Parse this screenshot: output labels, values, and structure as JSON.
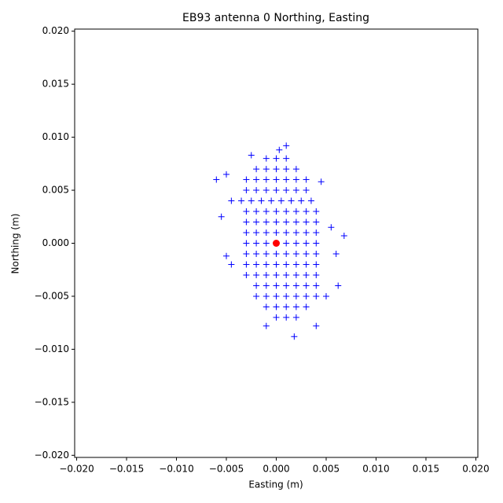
{
  "chart_data": {
    "type": "scatter",
    "title": "EB93 antenna 0 Northing, Easting",
    "x_label": "Easting (m)",
    "y_label": "Northing (m)",
    "xlim": [
      -0.0202,
      0.0202
    ],
    "ylim": [
      -0.0202,
      0.0202
    ],
    "xticks": [
      {
        "value": -0.02,
        "label": "−0.020"
      },
      {
        "value": -0.015,
        "label": "−0.015"
      },
      {
        "value": -0.01,
        "label": "−0.010"
      },
      {
        "value": -0.005,
        "label": "−0.005"
      },
      {
        "value": 0,
        "label": "0.000"
      },
      {
        "value": 0.005,
        "label": "0.005"
      },
      {
        "value": 0.01,
        "label": "0.010"
      },
      {
        "value": 0.015,
        "label": "0.015"
      },
      {
        "value": 0.02,
        "label": "0.020"
      }
    ],
    "yticks": [
      {
        "value": -0.02,
        "label": "−0.020"
      },
      {
        "value": -0.015,
        "label": "−0.015"
      },
      {
        "value": -0.01,
        "label": "−0.010"
      },
      {
        "value": -0.005,
        "label": "−0.005"
      },
      {
        "value": 0,
        "label": "0.000"
      },
      {
        "value": 0.005,
        "label": "0.005"
      },
      {
        "value": 0.01,
        "label": "0.010"
      },
      {
        "value": 0.015,
        "label": "0.015"
      },
      {
        "value": 0.02,
        "label": "0.020"
      }
    ],
    "grid": false,
    "series": [
      {
        "color": "#0000ff",
        "marker": "+",
        "x": [
          -0.001,
          0,
          0.001,
          -0.002,
          -0.001,
          0,
          0.001,
          0.002,
          -0.003,
          -0.002,
          -0.001,
          0,
          0.001,
          0.002,
          0.003,
          -0.003,
          -0.002,
          -0.001,
          0,
          0.001,
          0.002,
          0.003,
          -0.0035,
          -0.0025,
          -0.0015,
          -0.0005,
          0.0005,
          0.0015,
          0.0025,
          0.0035,
          -0.003,
          -0.002,
          -0.001,
          0,
          0.001,
          0.002,
          0.003,
          0.004,
          -0.003,
          -0.002,
          -0.001,
          0,
          0.001,
          0.002,
          0.003,
          0.004,
          -0.003,
          -0.002,
          -0.001,
          0,
          0.001,
          0.002,
          0.003,
          0.004,
          -0.003,
          -0.002,
          -0.001,
          0,
          0.001,
          0.002,
          0.003,
          0.004,
          -0.003,
          -0.002,
          -0.001,
          0,
          0.001,
          0.002,
          0.003,
          0.004,
          -0.003,
          -0.002,
          -0.001,
          0,
          0.001,
          0.002,
          0.003,
          0.004,
          -0.003,
          -0.002,
          -0.001,
          0,
          0.001,
          0.002,
          0.003,
          0.004,
          -0.002,
          -0.001,
          0,
          0.001,
          0.002,
          0.003,
          0.004,
          -0.002,
          -0.001,
          0,
          0.001,
          0.002,
          0.003,
          0.004,
          -0.001,
          0,
          0.001,
          0.002,
          0.003,
          0,
          0.001,
          0.002,
          -0.006,
          -0.0055,
          -0.005,
          -0.005,
          0.0068,
          0.006,
          0.0062,
          0.0055,
          0.004,
          0.0018,
          0.001,
          -0.0025,
          0.0003,
          -0.001,
          0.0045,
          -0.0045,
          0.005,
          -0.0045
        ],
        "y": [
          0.008,
          0.008,
          0.008,
          0.007,
          0.007,
          0.007,
          0.007,
          0.007,
          0.006,
          0.006,
          0.006,
          0.006,
          0.006,
          0.006,
          0.006,
          0.005,
          0.005,
          0.005,
          0.005,
          0.005,
          0.005,
          0.005,
          0.004,
          0.004,
          0.004,
          0.004,
          0.004,
          0.004,
          0.004,
          0.004,
          0.003,
          0.003,
          0.003,
          0.003,
          0.003,
          0.003,
          0.003,
          0.003,
          0.002,
          0.002,
          0.002,
          0.002,
          0.002,
          0.002,
          0.002,
          0.002,
          0.001,
          0.001,
          0.001,
          0.001,
          0.001,
          0.001,
          0.001,
          0.001,
          0,
          0,
          0,
          0,
          0,
          0,
          0,
          0,
          -0.001,
          -0.001,
          -0.001,
          -0.001,
          -0.001,
          -0.001,
          -0.001,
          -0.001,
          -0.002,
          -0.002,
          -0.002,
          -0.002,
          -0.002,
          -0.002,
          -0.002,
          -0.002,
          -0.003,
          -0.003,
          -0.003,
          -0.003,
          -0.003,
          -0.003,
          -0.003,
          -0.003,
          -0.004,
          -0.004,
          -0.004,
          -0.004,
          -0.004,
          -0.004,
          -0.004,
          -0.005,
          -0.005,
          -0.005,
          -0.005,
          -0.005,
          -0.005,
          -0.005,
          -0.006,
          -0.006,
          -0.006,
          -0.006,
          -0.006,
          -0.007,
          -0.007,
          -0.007,
          0.006,
          0.0025,
          0.0065,
          -0.0012,
          0.0007,
          -0.001,
          -0.004,
          0.0015,
          -0.0078,
          -0.0088,
          0.0092,
          0.0083,
          0.0088,
          -0.0078,
          0.0058,
          0.004,
          -0.005,
          -0.002
        ]
      },
      {
        "color": "#ff0000",
        "marker": "o",
        "x": [
          0
        ],
        "y": [
          0
        ]
      }
    ]
  }
}
